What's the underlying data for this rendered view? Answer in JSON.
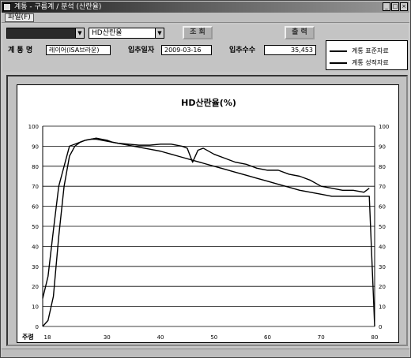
{
  "window": {
    "title": "계통 - 구름계 / 분석 (산란율)"
  },
  "menu": {
    "item": "파일(F)"
  },
  "toolbar": {
    "combo1_value": "",
    "combo2_value": "HD산란율",
    "search_label": "조 회",
    "print_label": "출 력",
    "name_label": "계 통 명",
    "name_value": "레이어(ISA브라운)",
    "date_label": "입추일자",
    "date_value": "2009-03-16",
    "count_label": "입추수수",
    "count_value": "35,453"
  },
  "legend": [
    {
      "label": "계통 표준자료"
    },
    {
      "label": "계통 성적자료"
    }
  ],
  "chart_data": {
    "type": "line",
    "title": "HD산란율(%)",
    "xlabel": "주령",
    "x_ticks": [
      18,
      30,
      40,
      50,
      60,
      70,
      80
    ],
    "y_ticks": [
      0,
      10,
      20,
      30,
      40,
      50,
      60,
      70,
      80,
      90,
      100
    ],
    "xlim": [
      18,
      80
    ],
    "ylim": [
      0,
      100
    ],
    "grid": true,
    "series": [
      {
        "name": "계통 표준자료",
        "x": [
          18,
          19,
          20,
          21,
          22,
          23,
          24,
          25,
          26,
          27,
          28,
          29,
          30,
          32,
          34,
          36,
          38,
          40,
          42,
          44,
          46,
          48,
          50,
          52,
          54,
          56,
          58,
          60,
          62,
          64,
          66,
          68,
          70,
          72,
          74,
          76,
          78,
          79,
          80
        ],
        "values": [
          0,
          3,
          15,
          45,
          70,
          85,
          90,
          92,
          93,
          93.5,
          93.5,
          93,
          92.5,
          91.5,
          90.5,
          89.5,
          88.5,
          87.5,
          86,
          84.5,
          83,
          81.5,
          80,
          78.5,
          77,
          75.5,
          74,
          72.5,
          71,
          69.5,
          68,
          67,
          66,
          65,
          65,
          65,
          65,
          65,
          0
        ]
      },
      {
        "name": "계통 성적자료",
        "x": [
          18,
          19,
          20,
          21,
          22,
          23,
          24,
          25,
          26,
          27,
          28,
          29,
          30,
          31,
          32,
          34,
          36,
          38,
          40,
          42,
          44,
          45,
          46,
          47,
          48,
          50,
          52,
          54,
          56,
          58,
          60,
          62,
          64,
          66,
          68,
          70,
          72,
          74,
          76,
          78,
          79
        ],
        "values": [
          14,
          25,
          48,
          70,
          80,
          90,
          91,
          92,
          93,
          93.5,
          94,
          93.5,
          93,
          92,
          91.5,
          91,
          90.5,
          90.5,
          91,
          91,
          90,
          89,
          82,
          88,
          89,
          86,
          84,
          82,
          81,
          79,
          78,
          78,
          76,
          75,
          73,
          70,
          69,
          68,
          68,
          67,
          69
        ]
      }
    ]
  }
}
